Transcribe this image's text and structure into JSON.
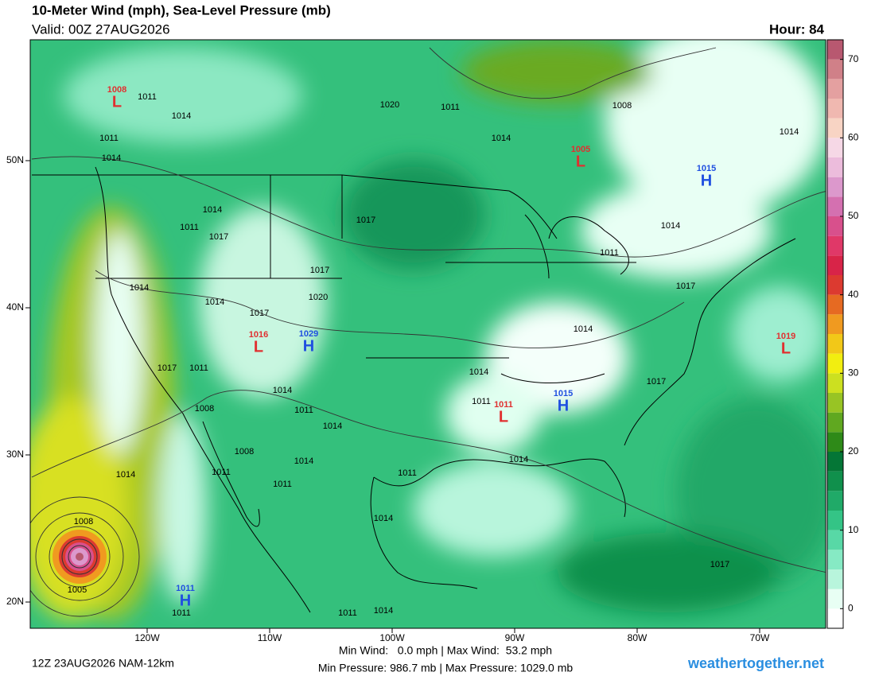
{
  "header": {
    "title": "10-Meter Wind (mph), Sea-Level Pressure (mb)",
    "valid": "Valid: 00Z 27AUG2026",
    "hour": "Hour: 84"
  },
  "map": {
    "lon_ticks": [
      {
        "value": -120,
        "label": "120W"
      },
      {
        "value": -110,
        "label": "110W"
      },
      {
        "value": -100,
        "label": "100W"
      },
      {
        "value": -90,
        "label": "90W"
      },
      {
        "value": -80,
        "label": "80W"
      },
      {
        "value": -70,
        "label": "70W"
      }
    ],
    "lat_ticks": [
      {
        "value": 20,
        "label": "20N"
      },
      {
        "value": 30,
        "label": "30N"
      },
      {
        "value": 40,
        "label": "40N"
      },
      {
        "value": 50,
        "label": "50N"
      }
    ],
    "centers": [
      {
        "symbol": "L",
        "value": "1008",
        "color": "#e03030"
      },
      {
        "symbol": "L",
        "value": "1005",
        "color": "#e03030"
      },
      {
        "symbol": "H",
        "value": "1015",
        "color": "#2050e0"
      },
      {
        "symbol": "L",
        "value": "1019",
        "color": "#e03030"
      },
      {
        "symbol": "L",
        "value": "1016",
        "color": "#e03030"
      },
      {
        "symbol": "H",
        "value": "1029",
        "color": "#2050e0"
      },
      {
        "symbol": "L",
        "value": "1011",
        "color": "#e03030"
      },
      {
        "symbol": "H",
        "value": "1015",
        "color": "#2050e0"
      },
      {
        "symbol": "H",
        "value": "1011",
        "color": "#2050e0"
      }
    ],
    "isobar_labels": [
      "1011",
      "1014",
      "1011",
      "1014",
      "1020",
      "1011",
      "1014",
      "1008",
      "1014",
      "1014",
      "1011",
      "1017",
      "1017",
      "1014",
      "1011",
      "1017",
      "1014",
      "1014",
      "1020",
      "1017",
      "1017",
      "1014",
      "1017",
      "1011",
      "1014",
      "1017",
      "1014",
      "1011",
      "1008",
      "1011",
      "1014",
      "1008",
      "1014",
      "1014",
      "1011",
      "1011",
      "1011",
      "1014",
      "1014",
      "1008",
      "1005",
      "1011",
      "1017",
      "1011",
      "1014"
    ]
  },
  "colorbar": {
    "lim": [
      -2.5,
      72.5
    ],
    "ticks": [
      0,
      10,
      20,
      30,
      40,
      50,
      60,
      70
    ],
    "colors": [
      "#ffffff",
      "#e8fff4",
      "#b8f5dc",
      "#86eac4",
      "#58d8a6",
      "#34c486",
      "#20aa68",
      "#10904c",
      "#047636",
      "#2e8a18",
      "#60a820",
      "#98c424",
      "#cce020",
      "#f2ee10",
      "#f2c818",
      "#f09a20",
      "#e66a22",
      "#dc3a30",
      "#d82448",
      "#e03868",
      "#d8508c",
      "#d470b0",
      "#dc98cc",
      "#ecbcdc",
      "#f6d8e6",
      "#f8d4c4",
      "#f0b8b0",
      "#e4a0a0",
      "#d08088",
      "#b85870"
    ]
  },
  "footer": {
    "run": "12Z 23AUG2026 NAM-12km",
    "wind": "Min Wind:   0.0 mph | Max Wind:  53.2 mph",
    "pressure": "Min Pressure: 986.7 mb | Max Pressure: 1029.0 mb",
    "brand": "weathertogether.net"
  }
}
